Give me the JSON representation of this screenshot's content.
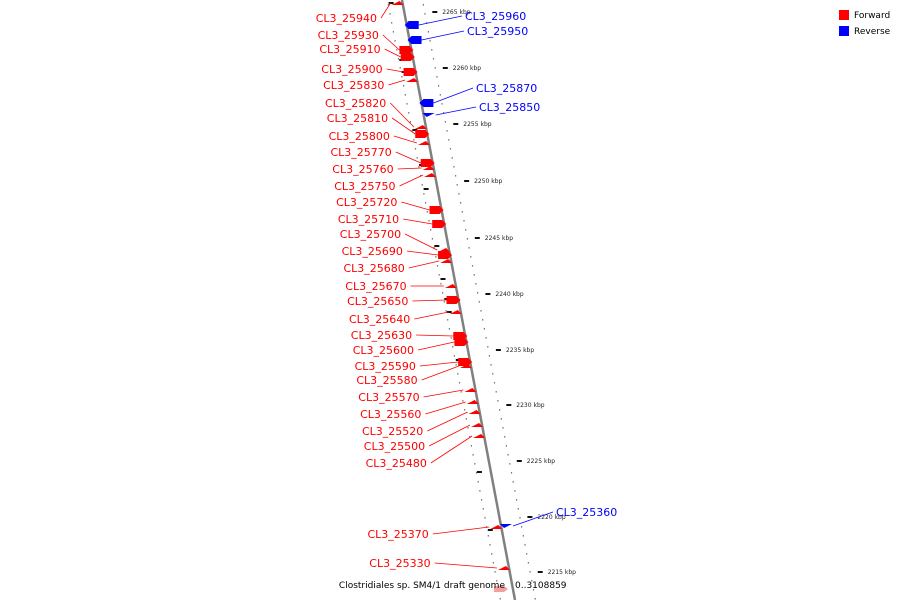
{
  "diagram": {
    "caption": "Clostridiales sp. SM4/1 draft genome",
    "range_label": "0..3108859",
    "colors": {
      "forward": "#ff0000",
      "reverse": "#0000ff",
      "backbone": "#808080"
    },
    "legend": [
      {
        "label": "Forward",
        "color": "#ff0000"
      },
      {
        "label": "Reverse",
        "color": "#0000ff"
      }
    ],
    "ticks": [
      "2265 kbp",
      "2260 kbp",
      "2255 kbp",
      "2250 kbp",
      "2245 kbp",
      "2240 kbp",
      "2235 kbp",
      "2230 kbp",
      "2225 kbp",
      "2220 kbp",
      "2215 kbp"
    ],
    "forward_genes": [
      "CL3_25940",
      "CL3_25930",
      "CL3_25910",
      "CL3_25900",
      "CL3_25830",
      "CL3_25820",
      "CL3_25810",
      "CL3_25800",
      "CL3_25770",
      "CL3_25760",
      "CL3_25750",
      "CL3_25720",
      "CL3_25710",
      "CL3_25700",
      "CL3_25690",
      "CL3_25680",
      "CL3_25670",
      "CL3_25650",
      "CL3_25640",
      "CL3_25630",
      "CL3_25600",
      "CL3_25590",
      "CL3_25580",
      "CL3_25570",
      "CL3_25560",
      "CL3_25520",
      "CL3_25500",
      "CL3_25480",
      "CL3_25370",
      "CL3_25330"
    ],
    "reverse_genes": [
      "CL3_25960",
      "CL3_25950",
      "CL3_25870",
      "CL3_25850",
      "CL3_25360"
    ]
  }
}
